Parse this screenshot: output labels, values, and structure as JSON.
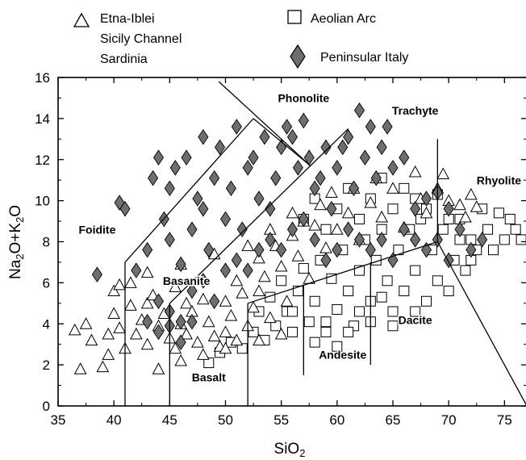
{
  "chart_data": {
    "type": "scatter",
    "xlabel": "SiO2",
    "ylabel": "Na2O+K2O",
    "xlim": [
      35,
      77
    ],
    "ylim": [
      0,
      16
    ],
    "xticks": [
      35,
      40,
      45,
      50,
      55,
      60,
      65,
      70,
      75
    ],
    "yticks": [
      0,
      2,
      4,
      6,
      8,
      10,
      12,
      14,
      16
    ],
    "grid": false,
    "legend_position": "top",
    "legend": [
      {
        "marker": "triangle",
        "lines": [
          "Etna-Iblei",
          "Sicily Channel",
          "Sardinia"
        ]
      },
      {
        "marker": "square",
        "lines": [
          "Aeolian Arc"
        ]
      },
      {
        "marker": "diamond",
        "lines": [
          "Peninsular Italy"
        ]
      }
    ],
    "fields": [
      {
        "name": "Foidite",
        "x": 38.5,
        "y": 8.4
      },
      {
        "name": "Basanite",
        "x": 46.5,
        "y": 5.9
      },
      {
        "name": "Basalt",
        "x": 48.5,
        "y": 1.2
      },
      {
        "name": "Andesite",
        "x": 60.5,
        "y": 2.3
      },
      {
        "name": "Dacite",
        "x": 67.0,
        "y": 4.0
      },
      {
        "name": "Phonolite",
        "x": 57.0,
        "y": 14.8
      },
      {
        "name": "Trachyte",
        "x": 67.0,
        "y": 14.2
      },
      {
        "name": "Rhyolite",
        "x": 74.5,
        "y": 10.8
      }
    ],
    "boundaries": [
      [
        [
          41,
          0
        ],
        [
          41,
          7
        ]
      ],
      [
        [
          41,
          7
        ],
        [
          52.5,
          14
        ]
      ],
      [
        [
          52.5,
          14
        ],
        [
          57.6,
          11.7
        ]
      ],
      [
        [
          45,
          0
        ],
        [
          45,
          5
        ]
      ],
      [
        [
          45,
          5
        ],
        [
          61,
          13.5
        ]
      ],
      [
        [
          52,
          0
        ],
        [
          52,
          5
        ]
      ],
      [
        [
          52,
          5
        ],
        [
          69,
          8
        ]
      ],
      [
        [
          57,
          1.5
        ],
        [
          57,
          5.9
        ]
      ],
      [
        [
          63,
          2
        ],
        [
          63,
          7
        ]
      ],
      [
        [
          69,
          8
        ],
        [
          69,
          13
        ]
      ],
      [
        [
          69,
          8
        ],
        [
          77,
          0
        ]
      ],
      [
        [
          57.6,
          11.7
        ],
        [
          49.4,
          15.8
        ]
      ]
    ],
    "series": [
      {
        "name": "Etna-Iblei, Sicily Channel, Sardinia",
        "marker": "triangle",
        "points": [
          [
            37,
            1.8
          ],
          [
            36.5,
            3.7
          ],
          [
            37.5,
            4
          ],
          [
            38,
            3.2
          ],
          [
            39,
            1.9
          ],
          [
            39.5,
            2.5
          ],
          [
            39.5,
            3.5
          ],
          [
            40,
            4.5
          ],
          [
            40,
            5.6
          ],
          [
            40.5,
            5.9
          ],
          [
            40.5,
            3.8
          ],
          [
            41,
            2.8
          ],
          [
            41.5,
            4.9
          ],
          [
            41.5,
            6
          ],
          [
            42,
            3.5
          ],
          [
            42.5,
            4.2
          ],
          [
            43,
            3
          ],
          [
            43,
            5
          ],
          [
            43.5,
            5.4
          ],
          [
            44,
            3.9
          ],
          [
            44.5,
            4.5
          ],
          [
            45,
            3.3
          ],
          [
            45.5,
            2.8
          ],
          [
            45.5,
            5.8
          ],
          [
            46,
            4
          ],
          [
            46.5,
            3.5
          ],
          [
            46.5,
            5
          ],
          [
            47,
            4.6
          ],
          [
            47.5,
            3.1
          ],
          [
            48,
            5.2
          ],
          [
            48.5,
            4.1
          ],
          [
            49,
            3.4
          ],
          [
            49.5,
            2.9
          ],
          [
            50,
            3.6
          ],
          [
            50,
            5.1
          ],
          [
            50.5,
            4.4
          ],
          [
            51,
            3.2
          ],
          [
            51,
            6.1
          ],
          [
            51.5,
            5.5
          ],
          [
            52,
            3.9
          ],
          [
            52.5,
            4.8
          ],
          [
            53,
            5.6
          ],
          [
            53,
            7.2
          ],
          [
            53.5,
            6.3
          ],
          [
            54,
            4.3
          ],
          [
            54.5,
            7.8
          ],
          [
            55,
            6.8
          ],
          [
            55.5,
            5.1
          ],
          [
            56,
            8.3
          ],
          [
            56.5,
            7.3
          ],
          [
            57,
            9
          ],
          [
            57.5,
            6.2
          ],
          [
            58,
            8.8
          ],
          [
            58.5,
            9.8
          ],
          [
            59,
            7.7
          ],
          [
            59.5,
            10.4
          ],
          [
            60,
            8.6
          ],
          [
            61,
            9.4
          ],
          [
            61.5,
            10.6
          ],
          [
            62,
            8.1
          ],
          [
            63,
            9.9
          ],
          [
            63.5,
            11.1
          ],
          [
            64,
            9.2
          ],
          [
            65,
            10.6
          ],
          [
            66,
            8.7
          ],
          [
            67,
            11.4
          ],
          [
            67.5,
            10.1
          ],
          [
            68,
            9.4
          ],
          [
            69,
            10.6
          ],
          [
            69.5,
            11.3
          ],
          [
            70,
            10
          ],
          [
            71,
            9.8
          ],
          [
            71.5,
            9.2
          ],
          [
            72,
            10.3
          ],
          [
            72.5,
            9.7
          ],
          [
            44,
            1.8
          ],
          [
            46,
            2.2
          ],
          [
            48,
            2.5
          ],
          [
            50,
            2.8
          ],
          [
            53,
            3.2
          ],
          [
            55,
            3.5
          ],
          [
            43,
            6.5
          ],
          [
            46,
            6.9
          ],
          [
            49,
            7.4
          ],
          [
            52,
            7.8
          ],
          [
            54,
            8.6
          ],
          [
            56,
            9.4
          ]
        ]
      },
      {
        "name": "Aeolian Arc",
        "marker": "square",
        "points": [
          [
            48.5,
            2.1
          ],
          [
            49.5,
            2.6
          ],
          [
            50.5,
            3.1
          ],
          [
            51.5,
            2.8
          ],
          [
            52.5,
            3.6
          ],
          [
            53,
            4.6
          ],
          [
            53.5,
            3.2
          ],
          [
            54,
            5.3
          ],
          [
            54.5,
            3.9
          ],
          [
            55,
            6.1
          ],
          [
            55.5,
            4.6
          ],
          [
            56,
            3.6
          ],
          [
            56.5,
            5.6
          ],
          [
            57,
            6.7
          ],
          [
            57.5,
            4.1
          ],
          [
            58,
            5.1
          ],
          [
            58.5,
            7.1
          ],
          [
            59,
            3.6
          ],
          [
            59.5,
            6.2
          ],
          [
            60,
            4.7
          ],
          [
            60.5,
            7.6
          ],
          [
            61,
            5.6
          ],
          [
            61.5,
            3.9
          ],
          [
            62,
            6.6
          ],
          [
            62.5,
            8.1
          ],
          [
            63,
            5.1
          ],
          [
            63.5,
            7.1
          ],
          [
            64,
            8.6
          ],
          [
            64.5,
            6.1
          ],
          [
            65,
            4.6
          ],
          [
            65.5,
            7.6
          ],
          [
            66,
            5.6
          ],
          [
            66.5,
            8.6
          ],
          [
            67,
            6.6
          ],
          [
            67.5,
            9.1
          ],
          [
            68,
            5.1
          ],
          [
            68.5,
            7.6
          ],
          [
            69,
            6.1
          ],
          [
            69.5,
            8.6
          ],
          [
            70,
            5.6
          ],
          [
            70.5,
            7.1
          ],
          [
            71,
            9.1
          ],
          [
            71.5,
            6.6
          ],
          [
            72,
            8.1
          ],
          [
            72.5,
            7.6
          ],
          [
            73,
            9.6
          ],
          [
            73.5,
            8.6
          ],
          [
            74,
            7.6
          ],
          [
            74.5,
            9.4
          ],
          [
            75,
            8.1
          ],
          [
            75.5,
            9.1
          ],
          [
            76,
            8.6
          ],
          [
            76.5,
            8.1
          ],
          [
            57,
            9.1
          ],
          [
            58,
            10.1
          ],
          [
            59,
            8.6
          ],
          [
            60,
            9.6
          ],
          [
            61,
            10.6
          ],
          [
            62,
            9.1
          ],
          [
            63,
            10.1
          ],
          [
            64,
            11.1
          ],
          [
            65,
            9.6
          ],
          [
            66,
            10.6
          ],
          [
            67,
            10.1
          ],
          [
            68,
            9.6
          ],
          [
            69,
            10.3
          ],
          [
            70,
            9.1
          ],
          [
            71,
            8.1
          ],
          [
            72,
            7.1
          ],
          [
            59,
            4.1
          ],
          [
            61,
            3.6
          ],
          [
            63,
            4.1
          ],
          [
            65,
            3.9
          ],
          [
            67,
            4.6
          ],
          [
            56,
            4.6
          ],
          [
            58,
            3.1
          ],
          [
            60,
            2.9
          ],
          [
            62,
            4.6
          ],
          [
            64,
            5.3
          ]
        ]
      },
      {
        "name": "Peninsular Italy",
        "marker": "diamond",
        "points": [
          [
            38.5,
            6.4
          ],
          [
            40.5,
            9.9
          ],
          [
            41,
            9.6
          ],
          [
            42,
            6.6
          ],
          [
            43,
            7.6
          ],
          [
            43.5,
            11.1
          ],
          [
            44,
            12.1
          ],
          [
            44.5,
            9.1
          ],
          [
            45,
            8.1
          ],
          [
            45,
            10.6
          ],
          [
            45.5,
            11.6
          ],
          [
            46,
            6.9
          ],
          [
            46.5,
            12.1
          ],
          [
            47,
            8.6
          ],
          [
            47.5,
            10.1
          ],
          [
            48,
            9.6
          ],
          [
            48,
            13.1
          ],
          [
            48.5,
            7.6
          ],
          [
            49,
            11.1
          ],
          [
            49.5,
            12.6
          ],
          [
            50,
            9.1
          ],
          [
            50.5,
            10.6
          ],
          [
            51,
            13.6
          ],
          [
            51.5,
            8.6
          ],
          [
            52,
            11.6
          ],
          [
            52.5,
            12.1
          ],
          [
            53,
            10.1
          ],
          [
            53.5,
            13.1
          ],
          [
            54,
            9.6
          ],
          [
            54.5,
            11.1
          ],
          [
            55,
            12.6
          ],
          [
            55.5,
            13.6
          ],
          [
            56,
            13.1
          ],
          [
            56.5,
            11.6
          ],
          [
            57,
            13.9
          ],
          [
            57.5,
            12.1
          ],
          [
            58,
            10.6
          ],
          [
            58.5,
            11.1
          ],
          [
            59,
            12.6
          ],
          [
            59.5,
            9.6
          ],
          [
            60,
            11.6
          ],
          [
            60.5,
            12.6
          ],
          [
            61,
            13.1
          ],
          [
            61.5,
            10.6
          ],
          [
            62,
            14.4
          ],
          [
            62.5,
            12.1
          ],
          [
            63,
            13.6
          ],
          [
            63.5,
            11.1
          ],
          [
            64,
            12.6
          ],
          [
            64.5,
            13.6
          ],
          [
            65,
            11.6
          ],
          [
            66,
            12.1
          ],
          [
            67,
            9.6
          ],
          [
            68,
            10.1
          ],
          [
            69,
            10.4
          ],
          [
            70,
            9.6
          ],
          [
            44,
            5.1
          ],
          [
            45,
            4.6
          ],
          [
            46,
            4.1
          ],
          [
            47,
            5.6
          ],
          [
            48,
            6.1
          ],
          [
            49,
            5.1
          ],
          [
            50,
            6.6
          ],
          [
            51,
            7.1
          ],
          [
            52,
            6.6
          ],
          [
            53,
            7.6
          ],
          [
            54,
            8.1
          ],
          [
            55,
            7.6
          ],
          [
            56,
            8.6
          ],
          [
            57,
            9.1
          ],
          [
            58,
            8.1
          ],
          [
            59,
            7.1
          ],
          [
            60,
            7.6
          ],
          [
            61,
            8.6
          ],
          [
            62,
            8.1
          ],
          [
            63,
            7.6
          ],
          [
            64,
            8.1
          ],
          [
            65,
            7.1
          ],
          [
            66,
            8.6
          ],
          [
            67,
            8.1
          ],
          [
            68,
            7.6
          ],
          [
            69,
            8.1
          ],
          [
            70,
            7.1
          ],
          [
            71,
            8.6
          ],
          [
            72,
            7.6
          ],
          [
            73,
            8.1
          ],
          [
            43,
            4.1
          ],
          [
            44,
            3.6
          ],
          [
            45,
            3.9
          ],
          [
            46,
            3.1
          ],
          [
            47,
            4.1
          ]
        ]
      }
    ]
  }
}
